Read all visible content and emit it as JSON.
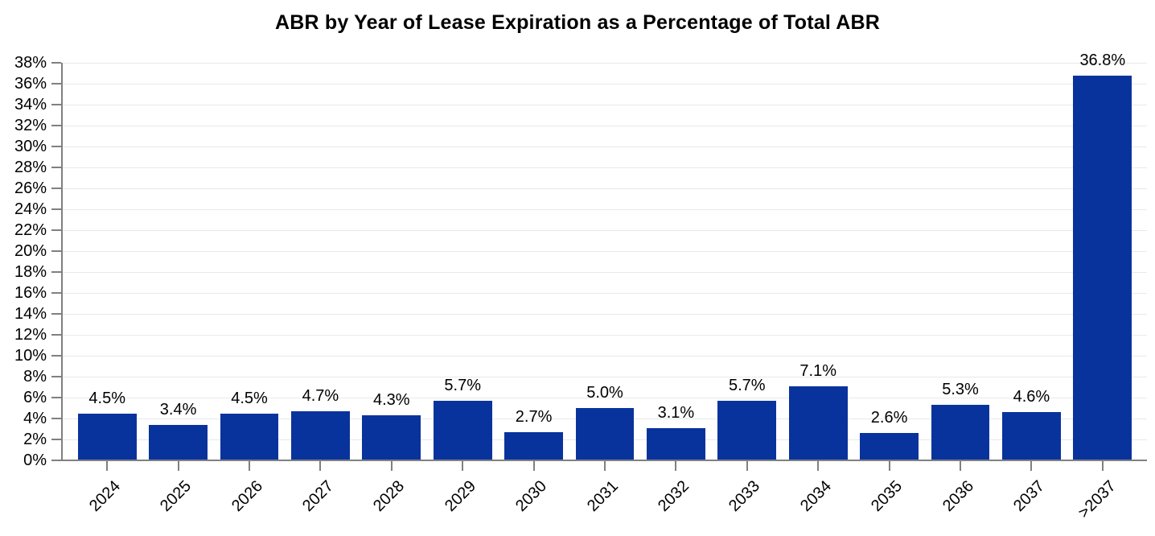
{
  "title": "ABR by Year of Lease Expiration as a Percentage of Total ABR",
  "chart_data": {
    "type": "bar",
    "title": "ABR by Year of Lease Expiration as a Percentage of Total ABR",
    "categories": [
      "2024",
      "2025",
      "2026",
      "2027",
      "2028",
      "2029",
      "2030",
      "2031",
      "2032",
      "2033",
      "2034",
      "2035",
      "2036",
      "2037",
      ">2037"
    ],
    "values": [
      4.5,
      3.4,
      4.5,
      4.7,
      4.3,
      5.7,
      2.7,
      5.0,
      3.1,
      5.7,
      7.1,
      2.6,
      5.3,
      4.6,
      36.8
    ],
    "value_labels": [
      "4.5%",
      "3.4%",
      "4.5%",
      "4.7%",
      "4.3%",
      "5.7%",
      "2.7%",
      "5.0%",
      "3.1%",
      "5.7%",
      "7.1%",
      "2.6%",
      "5.3%",
      "4.6%",
      "36.8%"
    ],
    "xlabel": "",
    "ylabel": "",
    "ylim": [
      0,
      38
    ],
    "ytick_step": 2,
    "ytick_suffix": "%",
    "grid": true,
    "legend": false,
    "colors": {
      "bar": "#09339c",
      "axis": "#808080",
      "tick": "#808080",
      "gridline": "#e9e9e9",
      "text": "#000000"
    }
  }
}
